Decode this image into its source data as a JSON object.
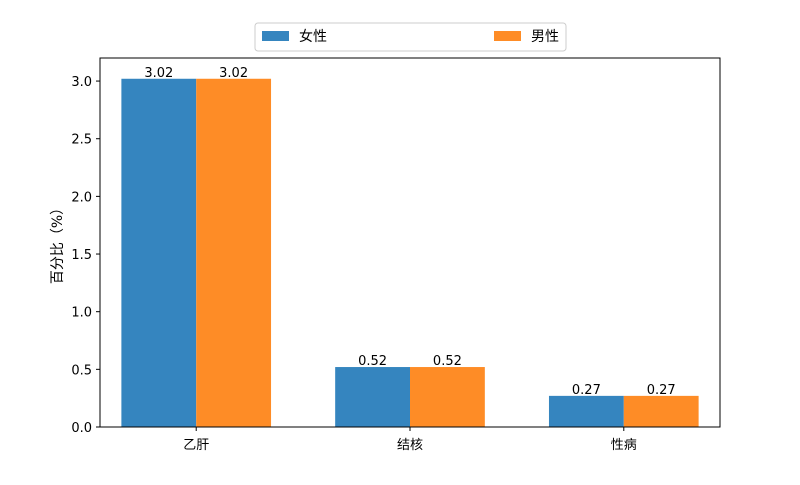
{
  "chart_data": {
    "type": "bar",
    "categories": [
      "乙肝",
      "结核",
      "性病"
    ],
    "series": [
      {
        "name": "女性",
        "values": [
          3.02,
          0.52,
          0.27
        ],
        "color": "#3585bf"
      },
      {
        "name": "男性",
        "values": [
          3.02,
          0.52,
          0.27
        ],
        "color": "#fe8c26"
      }
    ],
    "data_labels": {
      "女性": [
        "3.02",
        "0.52",
        "0.27"
      ],
      "男性": [
        "3.02",
        "0.52",
        "0.27"
      ]
    },
    "title": "",
    "xlabel": "",
    "ylabel": "百分比（%）",
    "ylim": [
      0,
      3.2
    ],
    "yticks": [
      0.0,
      0.5,
      1.0,
      1.5,
      2.0,
      2.5,
      3.0
    ],
    "ytick_labels": [
      "0.0",
      "0.5",
      "1.0",
      "1.5",
      "2.0",
      "2.5",
      "3.0"
    ],
    "grid": false,
    "legend_position": "top-center"
  }
}
